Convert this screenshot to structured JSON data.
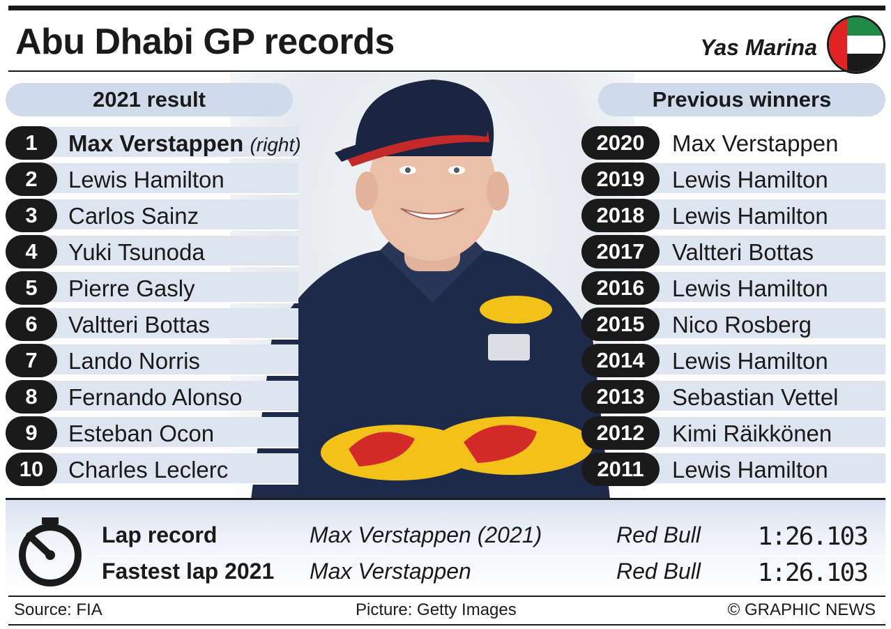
{
  "title": "Abu Dhabi GP records",
  "venue": "Yas Marina",
  "results": {
    "heading": "2021 result",
    "rows": [
      {
        "pos": "1",
        "name": "Max Verstappen",
        "note": "(right)"
      },
      {
        "pos": "2",
        "name": "Lewis Hamilton"
      },
      {
        "pos": "3",
        "name": "Carlos Sainz"
      },
      {
        "pos": "4",
        "name": "Yuki Tsunoda"
      },
      {
        "pos": "5",
        "name": "Pierre Gasly"
      },
      {
        "pos": "6",
        "name": "Valtteri Bottas"
      },
      {
        "pos": "7",
        "name": "Lando Norris"
      },
      {
        "pos": "8",
        "name": "Fernando Alonso"
      },
      {
        "pos": "9",
        "name": "Esteban Ocon"
      },
      {
        "pos": "10",
        "name": "Charles Leclerc"
      }
    ]
  },
  "winners": {
    "heading": "Previous winners",
    "rows": [
      {
        "year": "2020",
        "name": "Max Verstappen"
      },
      {
        "year": "2019",
        "name": "Lewis Hamilton"
      },
      {
        "year": "2018",
        "name": "Lewis Hamilton"
      },
      {
        "year": "2017",
        "name": "Valtteri Bottas"
      },
      {
        "year": "2016",
        "name": "Lewis Hamilton"
      },
      {
        "year": "2015",
        "name": "Nico Rosberg"
      },
      {
        "year": "2014",
        "name": "Lewis Hamilton"
      },
      {
        "year": "2013",
        "name": "Sebastian Vettel"
      },
      {
        "year": "2012",
        "name": "Kimi Räikkönen"
      },
      {
        "year": "2011",
        "name": "Lewis Hamilton"
      }
    ]
  },
  "laps": [
    {
      "label": "Lap record",
      "driver": "Max Verstappen (2021)",
      "team": "Red Bull",
      "time": "1:26.103"
    },
    {
      "label": "Fastest lap 2021",
      "driver": "Max Verstappen",
      "team": "Red Bull",
      "time": "1:26.103"
    }
  ],
  "footer": {
    "source": "Source: FIA",
    "picture": "Picture: Getty Images",
    "credit": "© GRAPHIC NEWS"
  },
  "icons": {
    "flag": "uae-flag-icon",
    "stopwatch": "stopwatch-icon"
  },
  "colors": {
    "band": "#dde5f0",
    "pill": "#cfdaea",
    "dark": "#1a1a1a",
    "flag_red": "#e02424",
    "flag_green": "#1f8a45"
  }
}
